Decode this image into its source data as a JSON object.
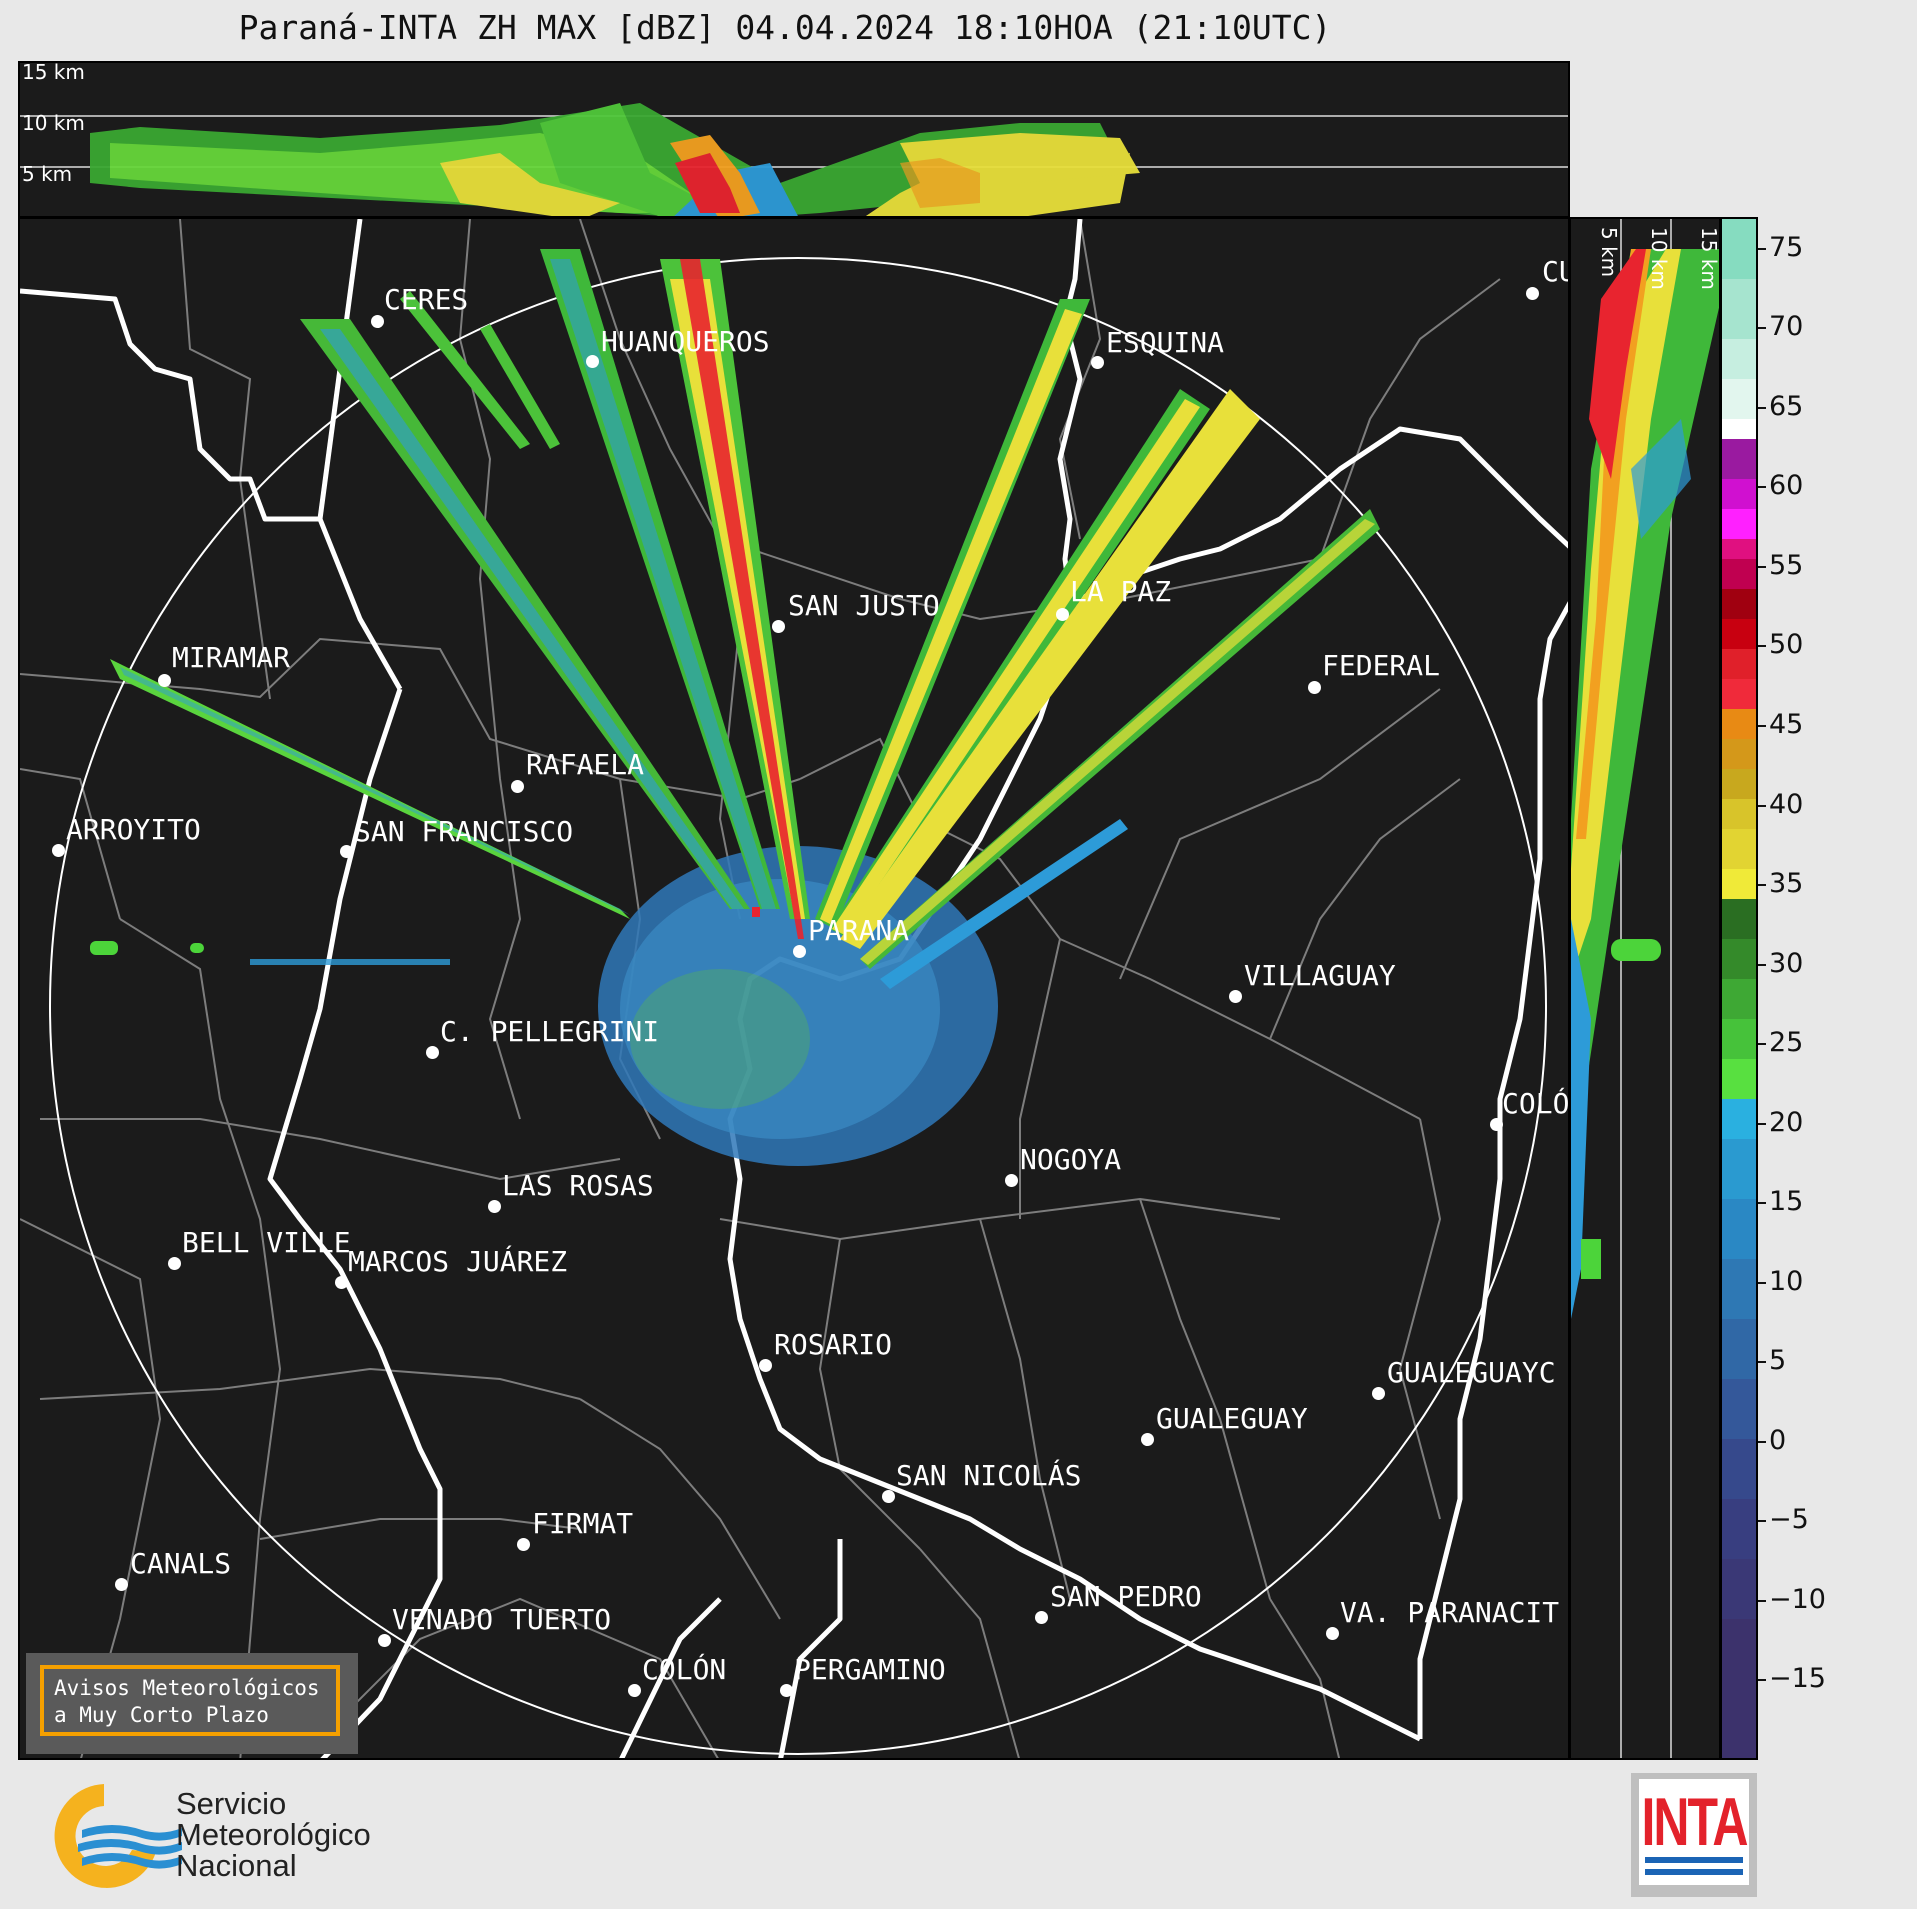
{
  "title": "Paraná-INTA ZH MAX [dBZ] 04.04.2024 18:10HOA (21:10UTC)",
  "top_panel": {
    "height_labels": [
      "15 km",
      "10 km",
      "5 km"
    ]
  },
  "side_panel": {
    "height_labels": [
      "5 km",
      "10 km",
      "15 km"
    ]
  },
  "colorbar": {
    "ticks": [
      "75",
      "70",
      "65",
      "60",
      "55",
      "50",
      "45",
      "40",
      "35",
      "30",
      "25",
      "20",
      "15",
      "10",
      "5",
      "0",
      "−5",
      "−10",
      "−15"
    ],
    "range": [
      -20,
      77
    ]
  },
  "cities": [
    {
      "name": "CERES"
    },
    {
      "name": "HUANQUEROS"
    },
    {
      "name": "ESQUINA"
    },
    {
      "name": "CU"
    },
    {
      "name": "SAN JUSTO"
    },
    {
      "name": "LA PAZ"
    },
    {
      "name": "MIRAMAR"
    },
    {
      "name": "FEDERAL"
    },
    {
      "name": "RAFAELA"
    },
    {
      "name": "ARROYITO"
    },
    {
      "name": "SAN FRANCISCO"
    },
    {
      "name": "PARANA"
    },
    {
      "name": "VILLAGUAY"
    },
    {
      "name": "C. PELLEGRINI"
    },
    {
      "name": "COLÓ"
    },
    {
      "name": "NOGOYA"
    },
    {
      "name": "LAS ROSAS"
    },
    {
      "name": "BELL VILLE"
    },
    {
      "name": "MARCOS JUÁREZ"
    },
    {
      "name": "ROSARIO"
    },
    {
      "name": "GUALEGUAYC"
    },
    {
      "name": "GUALEGUAY"
    },
    {
      "name": "SAN NICOLÁS"
    },
    {
      "name": "FIRMAT"
    },
    {
      "name": "CANALS"
    },
    {
      "name": "SAN PEDRO"
    },
    {
      "name": "VENADO TUERTO"
    },
    {
      "name": "VA. PARANACIT"
    },
    {
      "name": "COLÓN"
    },
    {
      "name": "PERGAMINO"
    }
  ],
  "warning_box": {
    "line1": "Avisos Meteorológicos",
    "line2": "a Muy Corto Plazo"
  },
  "smn_logo": {
    "line1": "Servicio",
    "line2": "Meteorológico",
    "line3": "Nacional"
  },
  "inta_logo": {
    "text": "INTA"
  },
  "colors": {
    "background": "#1b1b1b",
    "border": "#ffffff",
    "accent_orange": "#f5a000",
    "inta_red": "#e3222b",
    "inta_blue": "#1b64b5"
  }
}
